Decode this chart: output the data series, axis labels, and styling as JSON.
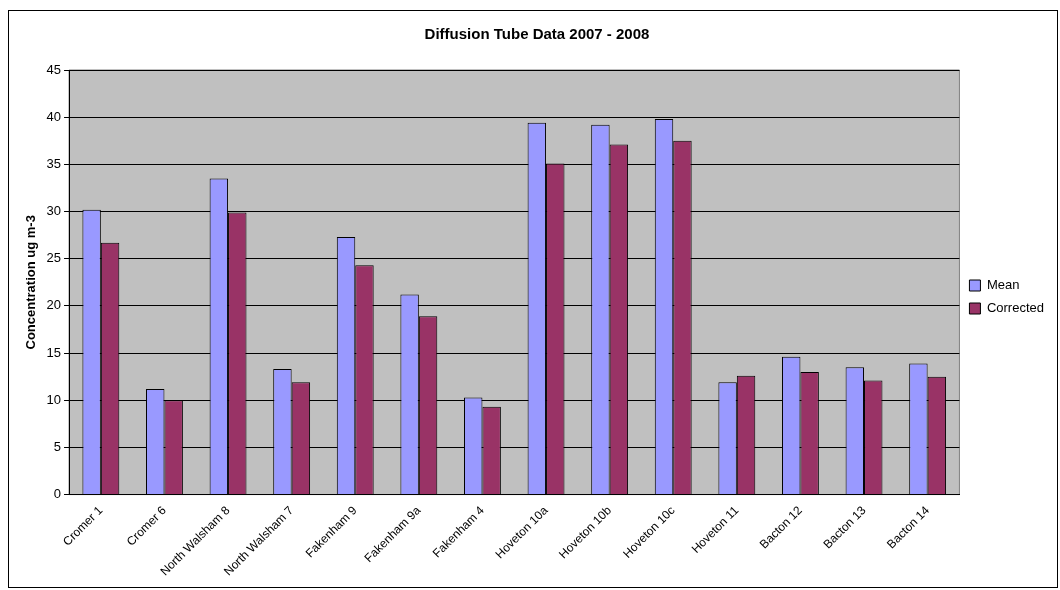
{
  "chart_data": {
    "type": "bar",
    "title": "Diffusion Tube Data 2007 - 2008",
    "ylabel": "Concentration ug m-3",
    "categories": [
      "Cromer 1",
      "Cromer 6",
      "North Walsham 8",
      "North Walsham 7",
      "Fakenham 9",
      "Fakenham 9a",
      "Fakenham 4",
      "Hoveton 10a",
      "Hoveton 10b",
      "Hoveton 10c",
      "Hoveton 11",
      "Bacton 12",
      "Bacton 13",
      "Bacton 14"
    ],
    "series": [
      {
        "name": "Mean",
        "color": "#9999ff",
        "values": [
          30.2,
          11.2,
          33.5,
          13.3,
          27.3,
          21.2,
          10.3,
          39.4,
          39.2,
          39.8,
          11.9,
          14.6,
          13.5,
          13.9
        ]
      },
      {
        "name": "Corrected",
        "color": "#993366",
        "values": [
          26.7,
          10.0,
          29.9,
          11.9,
          24.3,
          18.9,
          9.3,
          35.1,
          37.1,
          37.5,
          12.6,
          13.0,
          12.1,
          12.5
        ]
      }
    ],
    "ylim": [
      0,
      45
    ],
    "yticks": [
      0,
      5,
      10,
      15,
      20,
      25,
      30,
      35,
      40,
      45
    ],
    "grid": "y",
    "legend": "right"
  }
}
